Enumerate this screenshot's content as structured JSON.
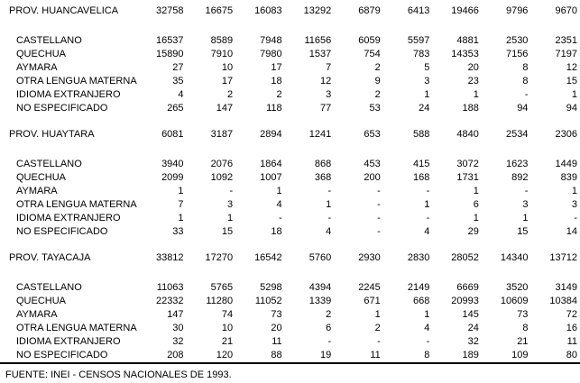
{
  "table": {
    "blocks": [
      {
        "title": "PROV. HUANCAVELICA",
        "totals": [
          "32758",
          "16675",
          "16083",
          "13292",
          "6879",
          "6413",
          "19466",
          "9796",
          "9670"
        ],
        "rows": [
          {
            "label": "CASTELLANO",
            "values": [
              "16537",
              "8589",
              "7948",
              "11656",
              "6059",
              "5597",
              "4881",
              "2530",
              "2351"
            ]
          },
          {
            "label": "QUECHUA",
            "values": [
              "15890",
              "7910",
              "7980",
              "1537",
              "754",
              "783",
              "14353",
              "7156",
              "7197"
            ]
          },
          {
            "label": "AYMARA",
            "values": [
              "27",
              "10",
              "17",
              "7",
              "2",
              "5",
              "20",
              "8",
              "12"
            ]
          },
          {
            "label": "OTRA LENGUA MATERNA",
            "values": [
              "35",
              "17",
              "18",
              "12",
              "9",
              "3",
              "23",
              "8",
              "15"
            ]
          },
          {
            "label": "IDIOMA EXTRANJERO",
            "values": [
              "4",
              "2",
              "2",
              "3",
              "2",
              "1",
              "1",
              "-",
              "1"
            ]
          },
          {
            "label": "NO ESPECIFICADO",
            "values": [
              "265",
              "147",
              "118",
              "77",
              "53",
              "24",
              "188",
              "94",
              "94"
            ]
          }
        ]
      },
      {
        "title": "PROV. HUAYTARA",
        "totals": [
          "6081",
          "3187",
          "2894",
          "1241",
          "653",
          "588",
          "4840",
          "2534",
          "2306"
        ],
        "rows": [
          {
            "label": "CASTELLANO",
            "values": [
              "3940",
              "2076",
              "1864",
              "868",
              "453",
              "415",
              "3072",
              "1623",
              "1449"
            ]
          },
          {
            "label": "QUECHUA",
            "values": [
              "2099",
              "1092",
              "1007",
              "368",
              "200",
              "168",
              "1731",
              "892",
              "839"
            ]
          },
          {
            "label": "AYMARA",
            "values": [
              "1",
              "-",
              "1",
              "-",
              "-",
              "-",
              "1",
              "-",
              "1"
            ]
          },
          {
            "label": "OTRA LENGUA MATERNA",
            "values": [
              "7",
              "3",
              "4",
              "1",
              "-",
              "1",
              "6",
              "3",
              "3"
            ]
          },
          {
            "label": "IDIOMA EXTRANJERO",
            "values": [
              "1",
              "1",
              "-",
              "-",
              "-",
              "-",
              "1",
              "1",
              "-"
            ]
          },
          {
            "label": "NO ESPECIFICADO",
            "values": [
              "33",
              "15",
              "18",
              "4",
              "-",
              "4",
              "29",
              "15",
              "14"
            ]
          }
        ]
      },
      {
        "title": "PROV. TAYACAJA",
        "totals": [
          "33812",
          "17270",
          "16542",
          "5760",
          "2930",
          "2830",
          "28052",
          "14340",
          "13712"
        ],
        "rows": [
          {
            "label": "CASTELLANO",
            "values": [
              "11063",
              "5765",
              "5298",
              "4394",
              "2245",
              "2149",
              "6669",
              "3520",
              "3149"
            ]
          },
          {
            "label": "QUECHUA",
            "values": [
              "22332",
              "11280",
              "11052",
              "1339",
              "671",
              "668",
              "20993",
              "10609",
              "10384"
            ]
          },
          {
            "label": "AYMARA",
            "values": [
              "147",
              "74",
              "73",
              "2",
              "1",
              "1",
              "145",
              "73",
              "72"
            ]
          },
          {
            "label": "OTRA LENGUA MATERNA",
            "values": [
              "30",
              "10",
              "20",
              "6",
              "2",
              "4",
              "24",
              "8",
              "16"
            ]
          },
          {
            "label": "IDIOMA EXTRANJERO",
            "values": [
              "32",
              "21",
              "11",
              "-",
              "-",
              "-",
              "32",
              "21",
              "11"
            ]
          },
          {
            "label": "NO ESPECIFICADO",
            "values": [
              "208",
              "120",
              "88",
              "19",
              "11",
              "8",
              "189",
              "109",
              "80"
            ]
          }
        ]
      }
    ]
  },
  "footer": {
    "source": "FUENTE: INEI - CENSOS NACIONALES DE 1993."
  }
}
